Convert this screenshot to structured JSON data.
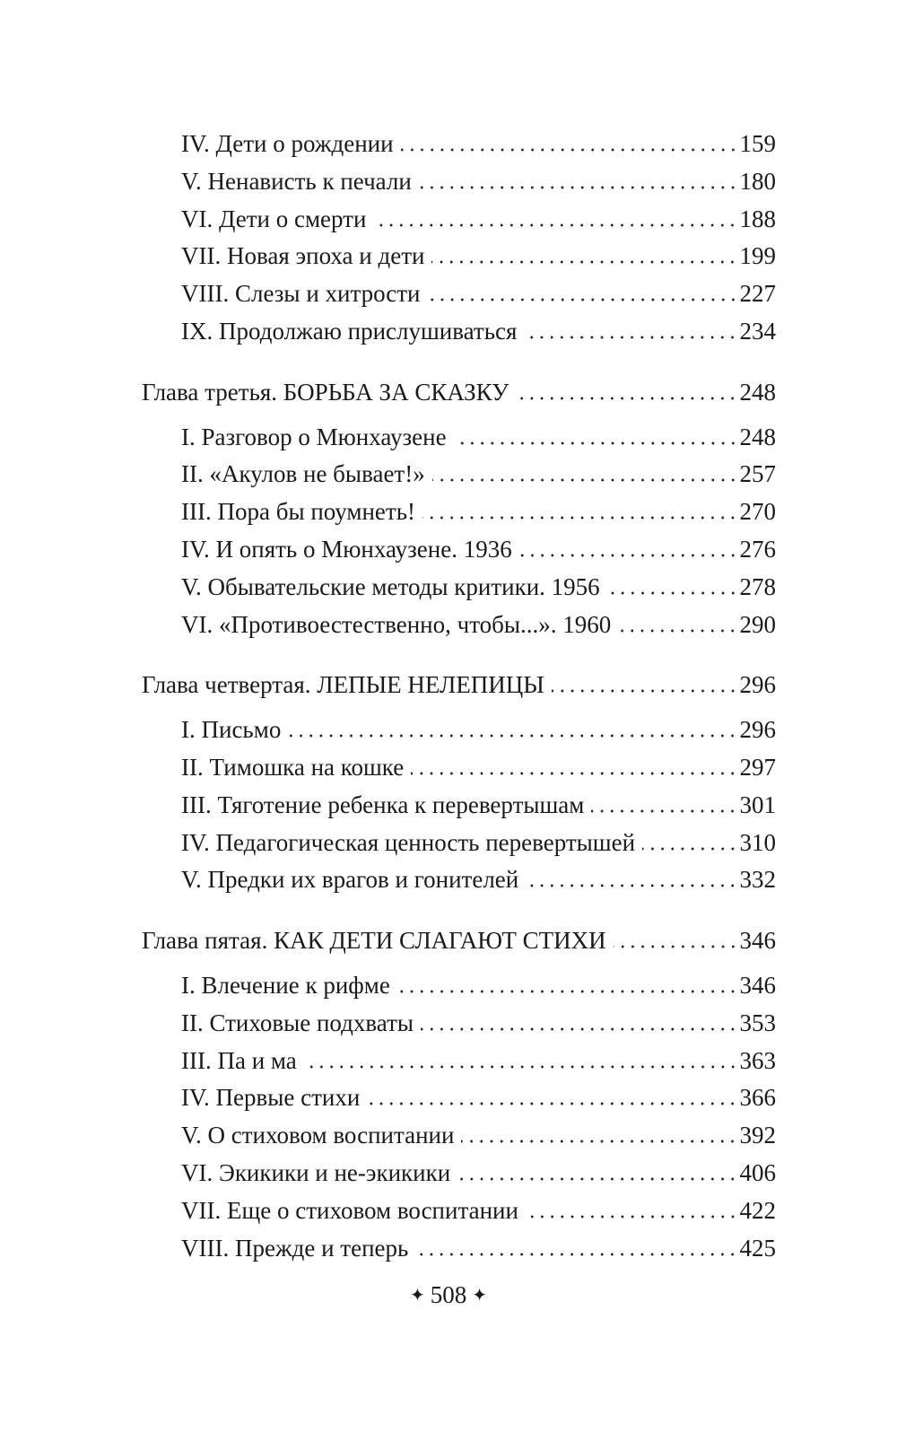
{
  "toc": [
    {
      "type": "sub",
      "title": "IV. Дети о рождении",
      "page": "159"
    },
    {
      "type": "sub",
      "title": "V. Ненависть к печали",
      "page": "180"
    },
    {
      "type": "sub",
      "title": "VI. Дети о смерти",
      "page": "188"
    },
    {
      "type": "sub",
      "title": "VII. Новая эпоха и дети",
      "page": "199"
    },
    {
      "type": "sub",
      "title": "VIII. Слезы и хитрости",
      "page": "227"
    },
    {
      "type": "sub",
      "title": "IX. Продолжаю прислушиваться",
      "page": "234"
    },
    {
      "type": "chapter",
      "title": "Глава третья. БОРЬБА ЗА СКАЗКУ",
      "page": "248"
    },
    {
      "type": "sub",
      "title": "I. Разговор о Мюнхаузене",
      "page": "248"
    },
    {
      "type": "sub",
      "title": "II. «Акулов не бывает!»",
      "page": "257"
    },
    {
      "type": "sub",
      "title": "III. Пора бы поумнеть!",
      "page": "270"
    },
    {
      "type": "sub",
      "title": "IV. И опять о Мюнхаузене. 1936",
      "page": "276"
    },
    {
      "type": "sub",
      "title": "V. Обывательские методы критики. 1956",
      "page": "278"
    },
    {
      "type": "sub",
      "title": "VI. «Противоестественно, чтобы...». 1960",
      "page": "290"
    },
    {
      "type": "chapter",
      "title": "Глава четвертая. ЛЕПЫЕ НЕЛЕПИЦЫ",
      "page": "296"
    },
    {
      "type": "sub",
      "title": "I. Письмо",
      "page": "296"
    },
    {
      "type": "sub",
      "title": "II. Тимошка на кошке",
      "page": "297"
    },
    {
      "type": "sub",
      "title": "III. Тяготение ребенка к перевертышам",
      "page": "301"
    },
    {
      "type": "sub",
      "title": "IV. Педагогическая ценность перевертышей",
      "page": "310"
    },
    {
      "type": "sub",
      "title": "V. Предки их врагов и гонителей",
      "page": "332"
    },
    {
      "type": "chapter",
      "title": "Глава пятая. КАК ДЕТИ СЛАГАЮТ СТИХИ",
      "page": "346"
    },
    {
      "type": "sub",
      "title": "I. Влечение к рифме",
      "page": "346"
    },
    {
      "type": "sub",
      "title": "II. Стиховые подхваты",
      "page": "353"
    },
    {
      "type": "sub",
      "title": "III. Па и ма",
      "page": "363"
    },
    {
      "type": "sub",
      "title": "IV. Первые стихи",
      "page": "366"
    },
    {
      "type": "sub",
      "title": "V. О стиховом воспитании",
      "page": "392"
    },
    {
      "type": "sub",
      "title": "VI. Экикики и не-экикики",
      "page": "406"
    },
    {
      "type": "sub",
      "title": "VII. Еще о стиховом воспитании",
      "page": "422"
    },
    {
      "type": "sub",
      "title": "VIII. Прежде и теперь",
      "page": "425"
    }
  ],
  "footer": {
    "page_number": "508",
    "ornament": "✦"
  }
}
